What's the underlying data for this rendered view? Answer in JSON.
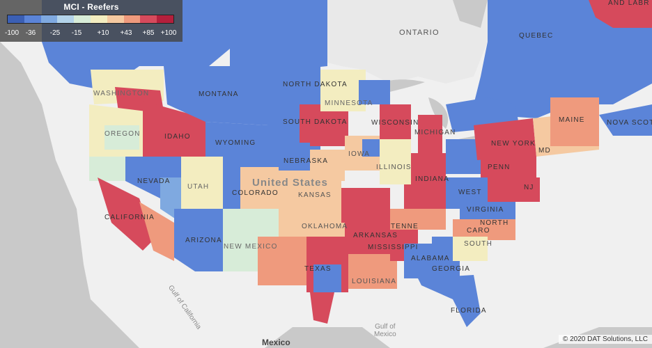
{
  "legend": {
    "title": "MCI - Reefers",
    "colors": [
      "#3b5fb4",
      "#5b84d8",
      "#7fa9e0",
      "#b3d3ea",
      "#d7ecd8",
      "#f3edc0",
      "#f5c9a1",
      "#ef9a7d",
      "#d64a5c",
      "#b41f3c"
    ],
    "ticks": [
      "-100",
      "-36",
      "-25",
      "-15",
      "+10",
      "+43",
      "+85",
      "+100"
    ]
  },
  "map_labels": {
    "ontario": "ONTARIO",
    "quebec": "QUEBEC",
    "labrador": "AND LABR",
    "washington": "WASHINGTON",
    "montana": "MONTANA",
    "north_dakota": "NORTH DAKOTA",
    "minnesota": "MINNESOTA",
    "oregon": "OREGON",
    "idaho": "IDAHO",
    "wyoming": "WYOMING",
    "south_dakota": "SOUTH DAKOTA",
    "wisconsin": "WISCONSIN",
    "michigan": "MICHIGAN",
    "new_york": "NEW YORK",
    "maine": "MAINE",
    "nova_scotia": "NOVA SCOTIA",
    "nebraska": "NEBRASKA",
    "iowa": "IOWA",
    "illinois": "ILLINOIS",
    "indiana": "INDIANA",
    "penn": "PENN",
    "nevada": "NEVADA",
    "utah": "UTAH",
    "colorado": "COLORADO",
    "united_states": "United States",
    "kansas": "KANSAS",
    "california": "CALIFORNIA",
    "west": "WEST",
    "virginia": "VIRGINIA",
    "nj": "NJ",
    "md": "MD",
    "oklahoma": "OKLAHOMA",
    "arizona": "ARIZONA",
    "new_mexico": "NEW MEXICO",
    "arkansas": "ARKANSAS",
    "tennessee": "TENNE",
    "north": "NORTH",
    "carolina": "CARO",
    "south": "SOUTH",
    "mississippi": "MISSISSIPPI",
    "alabama": "ALABAMA",
    "georgia": "GEORGIA",
    "texas": "TEXAS",
    "louisiana": "LOUISIANA",
    "florida": "FLORIDA",
    "gulf_california": "Gulf of California",
    "gulf_mexico": "Gulf of\nMexico",
    "mexico": "Mexico"
  },
  "copyright": "© 2020 DAT Solutions, LLC"
}
